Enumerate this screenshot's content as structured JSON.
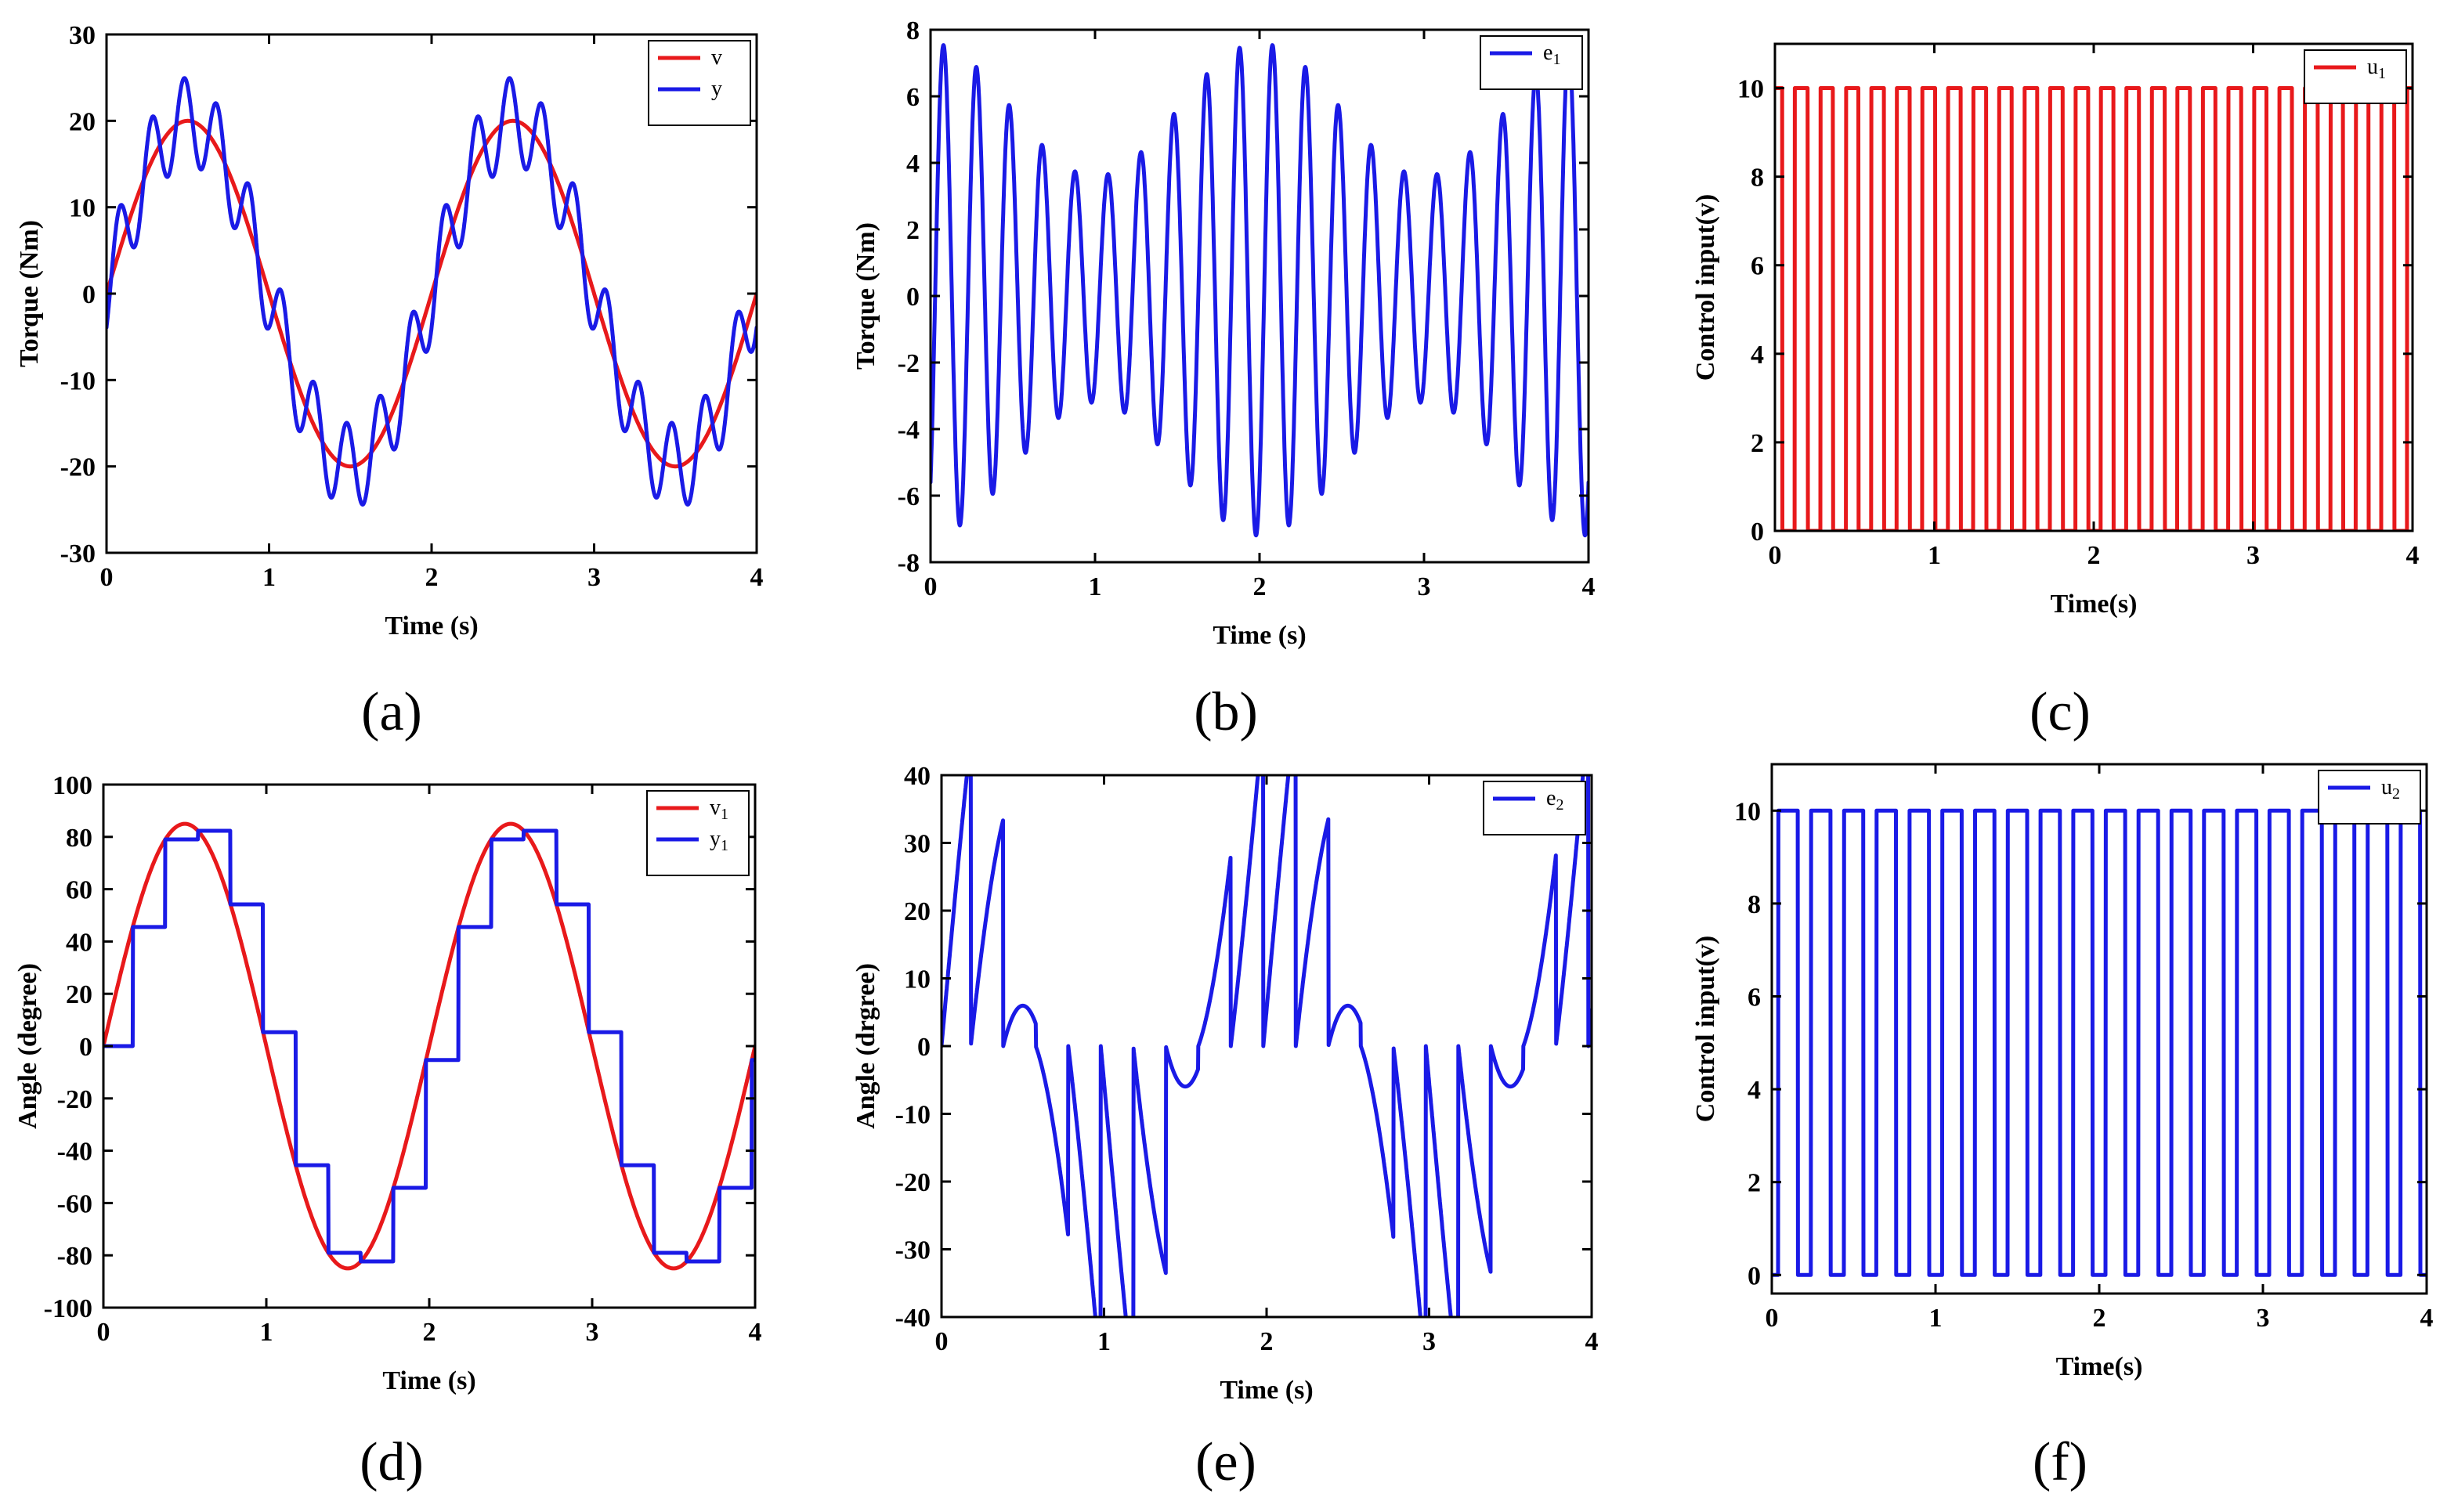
{
  "colors": {
    "red": "#e8191b",
    "blue": "#1a1ae6"
  },
  "chart_data": [
    {
      "id": "a",
      "type": "line",
      "panel_label": "(a)",
      "xlabel": "Time (s)",
      "ylabel": "Torque (Nm)",
      "xlim": [
        0,
        4
      ],
      "ylim": [
        -30,
        30
      ],
      "xticks": [
        0,
        1,
        2,
        3,
        4
      ],
      "yticks": [
        -30,
        -20,
        -10,
        0,
        10,
        20,
        30
      ],
      "legend_position": "top-right",
      "series": [
        {
          "name": "v",
          "sub": "",
          "color": "red",
          "gen": "sine",
          "params": {
            "amp": 20,
            "freq": 0.5
          }
        },
        {
          "name": "y",
          "sub": "",
          "color": "blue",
          "gen": "sine_ripple",
          "params": {
            "amp": 20,
            "freq": 0.5,
            "ramp": 5,
            "rfreq": 5,
            "rphase": -0.9
          }
        }
      ]
    },
    {
      "id": "b",
      "type": "line",
      "panel_label": "(b)",
      "xlabel": "Time (s)",
      "ylabel": "Torque (Nm)",
      "xlim": [
        0,
        4
      ],
      "ylim": [
        -8,
        8
      ],
      "xticks": [
        0,
        1,
        2,
        3,
        4
      ],
      "yticks": [
        -8,
        -6,
        -4,
        -2,
        0,
        2,
        4,
        6,
        8
      ],
      "legend_position": "top-right",
      "series": [
        {
          "name": "e",
          "sub": "1",
          "color": "blue",
          "gen": "beat",
          "params": {
            "a": 5.4,
            "b": 2.0,
            "f": 5,
            "fb": 0.5,
            "ph": -0.9,
            "off": 0.2
          }
        }
      ]
    },
    {
      "id": "c",
      "type": "line",
      "panel_label": "(c)",
      "xlabel": "Time(s)",
      "ylabel": "Control input(v)",
      "xlim": [
        0,
        4
      ],
      "ylim": [
        0,
        11
      ],
      "xticks": [
        0,
        1,
        2,
        3,
        4
      ],
      "yticks": [
        0,
        2,
        4,
        6,
        8,
        10
      ],
      "legend_position": "top-right",
      "series": [
        {
          "name": "u",
          "sub": "1",
          "color": "red",
          "gen": "pulse",
          "params": {
            "amp": 10,
            "period": 0.16,
            "duty": 0.5,
            "phase": 0.035
          }
        }
      ]
    },
    {
      "id": "d",
      "type": "line",
      "panel_label": "(d)",
      "xlabel": "Time (s)",
      "ylabel": "Angle (degree)",
      "xlim": [
        0,
        4
      ],
      "ylim": [
        -100,
        100
      ],
      "xticks": [
        0,
        1,
        2,
        3,
        4
      ],
      "yticks": [
        -100,
        -80,
        -60,
        -40,
        -20,
        0,
        20,
        40,
        60,
        80,
        100
      ],
      "legend_position": "top-right",
      "series": [
        {
          "name": "v",
          "sub": "1",
          "color": "red",
          "gen": "sine",
          "params": {
            "amp": 85,
            "freq": 0.5
          }
        },
        {
          "name": "y",
          "sub": "1",
          "color": "blue",
          "gen": "staircase",
          "params": {
            "amp": 85,
            "freq": 0.5,
            "step": 0.2,
            "shift": -0.02
          }
        }
      ]
    },
    {
      "id": "e",
      "type": "line",
      "panel_label": "(e)",
      "xlabel": "Time (s)",
      "ylabel": "Angle (drgree)",
      "xlim": [
        0,
        4
      ],
      "ylim": [
        -40,
        40
      ],
      "xticks": [
        0,
        1,
        2,
        3,
        4
      ],
      "yticks": [
        -40,
        -30,
        -20,
        -10,
        0,
        10,
        20,
        30,
        40
      ],
      "legend_position": "top-right",
      "series": [
        {
          "name": "e",
          "sub": "2",
          "color": "blue",
          "gen": "stair_error",
          "params": {
            "amp": 85,
            "freq": 0.5,
            "step": 0.2,
            "shift": -0.02
          }
        }
      ]
    },
    {
      "id": "f",
      "type": "line",
      "panel_label": "(f)",
      "xlabel": "Time(s)",
      "ylabel": "Control input(v)",
      "xlim": [
        0,
        4
      ],
      "ylim": [
        -0.4,
        11
      ],
      "xticks": [
        0,
        1,
        2,
        3,
        4
      ],
      "yticks": [
        0,
        2,
        4,
        6,
        8,
        10
      ],
      "legend_position": "top-right",
      "series": [
        {
          "name": "u",
          "sub": "2",
          "color": "blue",
          "gen": "pulse",
          "params": {
            "amp": 10,
            "period": 0.2,
            "duty": 0.6,
            "phase": 0.16
          }
        }
      ]
    }
  ]
}
